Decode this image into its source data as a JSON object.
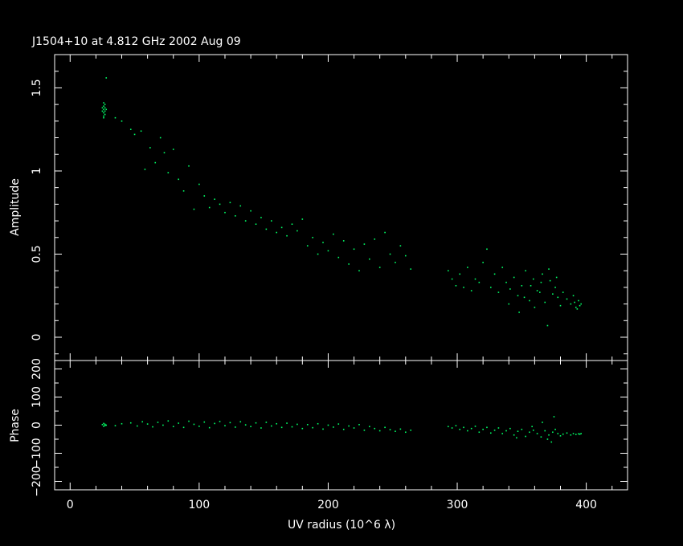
{
  "chart_data": [
    {
      "type": "scatter",
      "title": "J1504+10 at 4.812 GHz 2002 Aug 09",
      "xlabel": "UV radius  (10^6 λ)",
      "ylabel": "Amplitude",
      "xlim": [
        -12,
        432
      ],
      "ylim": [
        -0.14,
        1.7
      ],
      "xticks": [
        0,
        100,
        200,
        300,
        400
      ],
      "yticks": [
        0,
        0.5,
        1,
        1.5
      ],
      "point_color": "#00ff66",
      "series": [
        {
          "points": [
            [
              26,
              1.41
            ],
            [
              26,
              1.39
            ],
            [
              26,
              1.37
            ],
            [
              26,
              1.35
            ],
            [
              26,
              1.33
            ],
            [
              27,
              1.4
            ],
            [
              27,
              1.38
            ],
            [
              27,
              1.36
            ],
            [
              27,
              1.34
            ],
            [
              25,
              1.38
            ],
            [
              25,
              1.36
            ],
            [
              26,
              1.32
            ],
            [
              28,
              1.37
            ],
            [
              28,
              1.56
            ],
            [
              35,
              1.32
            ],
            [
              40,
              1.3
            ],
            [
              47,
              1.25
            ],
            [
              50,
              1.22
            ],
            [
              55,
              1.24
            ],
            [
              58,
              1.01
            ],
            [
              62,
              1.14
            ],
            [
              66,
              1.05
            ],
            [
              70,
              1.2
            ],
            [
              73,
              1.11
            ],
            [
              76,
              0.99
            ],
            [
              80,
              1.13
            ],
            [
              84,
              0.95
            ],
            [
              88,
              0.88
            ],
            [
              92,
              1.03
            ],
            [
              96,
              0.77
            ],
            [
              100,
              0.92
            ],
            [
              104,
              0.85
            ],
            [
              108,
              0.78
            ],
            [
              112,
              0.83
            ],
            [
              116,
              0.8
            ],
            [
              120,
              0.75
            ],
            [
              124,
              0.81
            ],
            [
              128,
              0.73
            ],
            [
              132,
              0.79
            ],
            [
              136,
              0.7
            ],
            [
              140,
              0.76
            ],
            [
              144,
              0.68
            ],
            [
              148,
              0.72
            ],
            [
              152,
              0.65
            ],
            [
              156,
              0.7
            ],
            [
              160,
              0.63
            ],
            [
              164,
              0.66
            ],
            [
              168,
              0.61
            ],
            [
              172,
              0.68
            ],
            [
              176,
              0.64
            ],
            [
              180,
              0.71
            ],
            [
              184,
              0.55
            ],
            [
              188,
              0.6
            ],
            [
              192,
              0.5
            ],
            [
              196,
              0.57
            ],
            [
              200,
              0.52
            ],
            [
              204,
              0.62
            ],
            [
              208,
              0.48
            ],
            [
              212,
              0.58
            ],
            [
              216,
              0.44
            ],
            [
              220,
              0.53
            ],
            [
              224,
              0.4
            ],
            [
              228,
              0.56
            ],
            [
              232,
              0.47
            ],
            [
              236,
              0.59
            ],
            [
              240,
              0.42
            ],
            [
              244,
              0.63
            ],
            [
              248,
              0.5
            ],
            [
              252,
              0.45
            ],
            [
              256,
              0.55
            ],
            [
              260,
              0.49
            ],
            [
              264,
              0.41
            ],
            [
              293,
              0.4
            ],
            [
              296,
              0.35
            ],
            [
              299,
              0.31
            ],
            [
              302,
              0.38
            ],
            [
              305,
              0.3
            ],
            [
              308,
              0.42
            ],
            [
              311,
              0.28
            ],
            [
              314,
              0.35
            ],
            [
              317,
              0.33
            ],
            [
              320,
              0.45
            ],
            [
              323,
              0.53
            ],
            [
              326,
              0.3
            ],
            [
              329,
              0.38
            ],
            [
              332,
              0.27
            ],
            [
              335,
              0.42
            ],
            [
              338,
              0.33
            ],
            [
              341,
              0.29
            ],
            [
              344,
              0.36
            ],
            [
              347,
              0.25
            ],
            [
              350,
              0.31
            ],
            [
              353,
              0.4
            ],
            [
              356,
              0.22
            ],
            [
              359,
              0.35
            ],
            [
              362,
              0.28
            ],
            [
              365,
              0.33
            ],
            [
              368,
              0.21
            ],
            [
              371,
              0.41
            ],
            [
              374,
              0.26
            ],
            [
              376,
              0.3
            ],
            [
              378,
              0.24
            ],
            [
              380,
              0.19
            ],
            [
              382,
              0.27
            ],
            [
              385,
              0.23
            ],
            [
              388,
              0.2
            ],
            [
              390,
              0.25
            ],
            [
              392,
              0.18
            ],
            [
              394,
              0.22
            ],
            [
              395,
              0.19
            ],
            [
              396,
              0.2
            ],
            [
              393,
              0.17
            ],
            [
              391,
              0.21
            ],
            [
              372,
              0.34
            ],
            [
              366,
              0.38
            ],
            [
              360,
              0.18
            ],
            [
              348,
              0.15
            ],
            [
              340,
              0.2
            ],
            [
              370,
              0.07
            ],
            [
              377,
              0.36
            ],
            [
              364,
              0.27
            ],
            [
              357,
              0.31
            ],
            [
              352,
              0.24
            ]
          ]
        }
      ]
    },
    {
      "type": "scatter",
      "xlabel": "UV radius  (10^6 λ)",
      "ylabel": "Phase",
      "xlim": [
        -12,
        432
      ],
      "ylim": [
        -230,
        230
      ],
      "xticks": [
        0,
        100,
        200,
        300,
        400
      ],
      "yticks": [
        -200,
        -100,
        0,
        100,
        200
      ],
      "ytick_labels": [
        "−200",
        "−100",
        "0",
        "100",
        "200"
      ],
      "point_color": "#00ff66",
      "series": [
        {
          "points": [
            [
              25,
              2
            ],
            [
              26,
              -4
            ],
            [
              26,
              6
            ],
            [
              27,
              -1
            ],
            [
              27,
              3
            ],
            [
              28,
              0
            ],
            [
              35,
              -2
            ],
            [
              40,
              5
            ],
            [
              47,
              8
            ],
            [
              52,
              -3
            ],
            [
              56,
              12
            ],
            [
              60,
              4
            ],
            [
              64,
              -6
            ],
            [
              68,
              10
            ],
            [
              72,
              0
            ],
            [
              76,
              15
            ],
            [
              80,
              -5
            ],
            [
              84,
              7
            ],
            [
              88,
              -8
            ],
            [
              92,
              14
            ],
            [
              96,
              3
            ],
            [
              100,
              -4
            ],
            [
              104,
              11
            ],
            [
              108,
              -9
            ],
            [
              112,
              6
            ],
            [
              116,
              13
            ],
            [
              120,
              -2
            ],
            [
              124,
              9
            ],
            [
              128,
              -7
            ],
            [
              132,
              12
            ],
            [
              136,
              1
            ],
            [
              140,
              -5
            ],
            [
              144,
              8
            ],
            [
              148,
              -10
            ],
            [
              152,
              10
            ],
            [
              156,
              -3
            ],
            [
              160,
              5
            ],
            [
              164,
              -8
            ],
            [
              168,
              7
            ],
            [
              172,
              -6
            ],
            [
              176,
              3
            ],
            [
              180,
              -12
            ],
            [
              184,
              2
            ],
            [
              188,
              -9
            ],
            [
              192,
              5
            ],
            [
              196,
              -14
            ],
            [
              200,
              0
            ],
            [
              204,
              -7
            ],
            [
              208,
              4
            ],
            [
              212,
              -15
            ],
            [
              216,
              -3
            ],
            [
              220,
              -10
            ],
            [
              224,
              2
            ],
            [
              228,
              -18
            ],
            [
              232,
              -5
            ],
            [
              236,
              -12
            ],
            [
              240,
              -20
            ],
            [
              244,
              -8
            ],
            [
              248,
              -16
            ],
            [
              252,
              -22
            ],
            [
              256,
              -14
            ],
            [
              260,
              -25
            ],
            [
              264,
              -18
            ],
            [
              293,
              -5
            ],
            [
              296,
              -10
            ],
            [
              299,
              -2
            ],
            [
              302,
              -15
            ],
            [
              305,
              -8
            ],
            [
              308,
              -20
            ],
            [
              311,
              -12
            ],
            [
              314,
              -4
            ],
            [
              317,
              -25
            ],
            [
              320,
              -15
            ],
            [
              323,
              -8
            ],
            [
              326,
              -28
            ],
            [
              329,
              -18
            ],
            [
              332,
              -10
            ],
            [
              335,
              -30
            ],
            [
              338,
              -20
            ],
            [
              341,
              -12
            ],
            [
              344,
              -35
            ],
            [
              347,
              -22
            ],
            [
              350,
              -15
            ],
            [
              353,
              -40
            ],
            [
              356,
              -25
            ],
            [
              359,
              -18
            ],
            [
              362,
              -30
            ],
            [
              365,
              -42
            ],
            [
              368,
              -20
            ],
            [
              371,
              -35
            ],
            [
              374,
              -25
            ],
            [
              376,
              -15
            ],
            [
              378,
              -30
            ],
            [
              380,
              -38
            ],
            [
              382,
              -32
            ],
            [
              385,
              -28
            ],
            [
              388,
              -35
            ],
            [
              390,
              -30
            ],
            [
              392,
              -33
            ],
            [
              394,
              -31
            ],
            [
              395,
              -32
            ],
            [
              396,
              -30
            ],
            [
              375,
              30
            ],
            [
              373,
              -60
            ],
            [
              366,
              10
            ],
            [
              358,
              -5
            ],
            [
              346,
              -45
            ],
            [
              370,
              -50
            ]
          ]
        }
      ]
    }
  ]
}
